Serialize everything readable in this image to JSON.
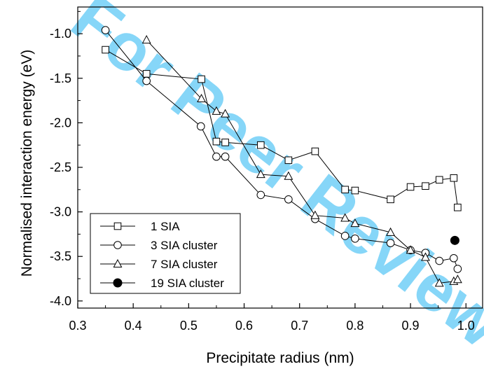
{
  "watermark": {
    "text": "For Peer Review",
    "color": "#5ec8f5"
  },
  "chart_data": {
    "type": "line",
    "title": "",
    "xlabel": "Precipitate radius (nm)",
    "ylabel": "Normalised interaction energy (eV)",
    "xlim": [
      0.3,
      1.03
    ],
    "ylim": [
      -4.08,
      -0.7
    ],
    "xticks": [
      0.3,
      0.4,
      0.5,
      0.6,
      0.7,
      0.8,
      0.9,
      1.0
    ],
    "xtick_labels": [
      "0.3",
      "0.4",
      "0.5",
      "0.6",
      "0.7",
      "0.8",
      "0.9",
      "1.0"
    ],
    "yticks": [
      -1.0,
      -1.5,
      -2.0,
      -2.5,
      -3.0,
      -3.5,
      -4.0
    ],
    "ytick_labels": [
      "-1.0",
      "-1.5",
      "-2.0",
      "-2.5",
      "-3.0",
      "-3.5",
      "-4.0"
    ],
    "grid": false,
    "legend_position": "bottom-left",
    "series": [
      {
        "name": "1 SIA",
        "marker": "square",
        "x": [
          0.35,
          0.424,
          0.523,
          0.55,
          0.566,
          0.63,
          0.68,
          0.728,
          0.782,
          0.8,
          0.864,
          0.9,
          0.927,
          0.952,
          0.978,
          0.985
        ],
        "y": [
          -1.18,
          -1.45,
          -1.51,
          -2.21,
          -2.22,
          -2.25,
          -2.42,
          -2.32,
          -2.75,
          -2.76,
          -2.86,
          -2.72,
          -2.71,
          -2.64,
          -2.62,
          -2.95
        ]
      },
      {
        "name": "3 SIA cluster",
        "marker": "circle",
        "x": [
          0.35,
          0.424,
          0.522,
          0.55,
          0.566,
          0.63,
          0.68,
          0.728,
          0.782,
          0.8,
          0.864,
          0.9,
          0.927,
          0.952,
          0.978,
          0.985
        ],
        "y": [
          -0.96,
          -1.53,
          -2.04,
          -2.38,
          -2.38,
          -2.81,
          -2.86,
          -3.08,
          -3.27,
          -3.3,
          -3.35,
          -3.43,
          -3.46,
          -3.55,
          -3.52,
          -3.64
        ]
      },
      {
        "name": "7 SIA cluster",
        "marker": "triangle",
        "x": [
          0.424,
          0.523,
          0.55,
          0.566,
          0.63,
          0.68,
          0.728,
          0.782,
          0.8,
          0.864,
          0.9,
          0.927,
          0.952,
          0.978,
          0.985
        ],
        "y": [
          -1.07,
          -1.73,
          -1.87,
          -1.9,
          -2.58,
          -2.6,
          -3.04,
          -3.07,
          -3.13,
          -3.23,
          -3.43,
          -3.51,
          -3.8,
          -3.78,
          -3.76
        ]
      },
      {
        "name": "19 SIA cluster",
        "marker": "filled-circle",
        "x": [
          0.98
        ],
        "y": [
          -3.32
        ]
      }
    ]
  }
}
